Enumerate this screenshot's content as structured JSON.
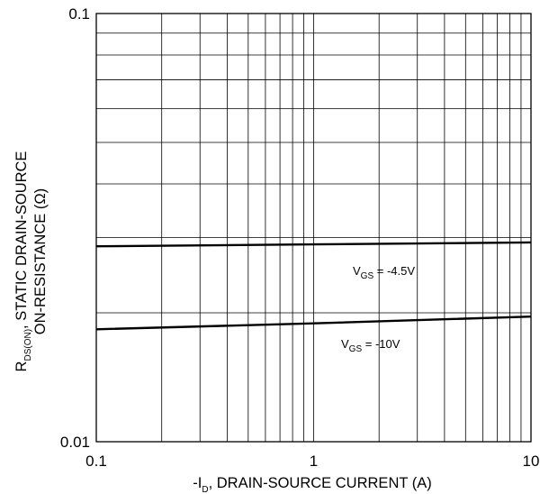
{
  "chart_data": {
    "type": "line",
    "x_scale": "log",
    "y_scale": "log",
    "xlim": [
      0.1,
      10
    ],
    "ylim": [
      0.01,
      0.1
    ],
    "grid": true,
    "x_ticks": [
      "0.1",
      "1",
      "10"
    ],
    "y_ticks": [
      "0.1",
      "0.01"
    ],
    "xlabel": {
      "prefix": "-I",
      "subscript": "D",
      "suffix": ", DRAIN-SOURCE CURRENT (A)"
    },
    "ylabel": {
      "line1_prefix": "R",
      "line1_subscript": "DS(ON)",
      "line1_suffix": ", STATIC DRAIN-SOURCE",
      "line2": "ON-RESISTANCE (Ω)"
    },
    "series": [
      {
        "name": "VGS = -4.5V",
        "label_main": "V",
        "label_sub": "GS",
        "label_rest": " = -4.5V",
        "x": [
          0.1,
          1,
          10
        ],
        "y": [
          0.0286,
          0.0289,
          0.0292
        ]
      },
      {
        "name": "VGS = -10V",
        "label_main": "V",
        "label_sub": "GS",
        "label_rest": " = -10V",
        "x": [
          0.1,
          1,
          10
        ],
        "y": [
          0.0183,
          0.0189,
          0.0196
        ]
      }
    ]
  }
}
